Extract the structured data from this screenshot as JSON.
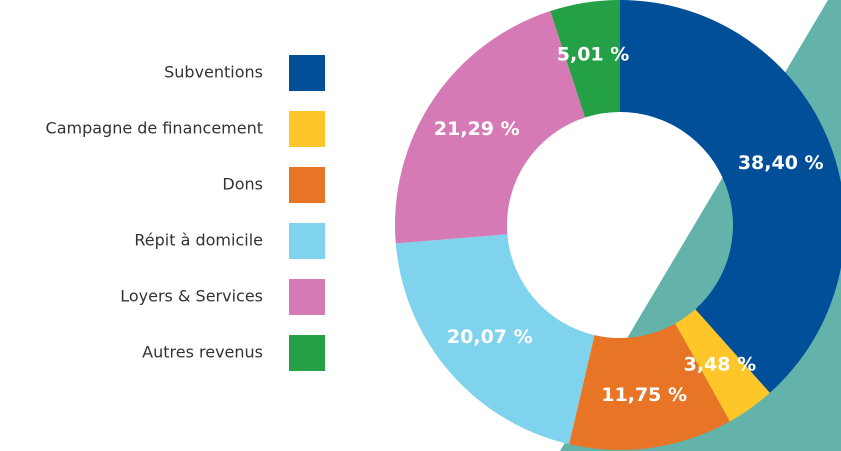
{
  "chart_data": {
    "type": "donut",
    "categories": [
      "Subventions",
      "Campagne de financement",
      "Dons",
      "Répit à domicile",
      "Loyers & Services",
      "Autres revenus"
    ],
    "values": [
      38.4,
      3.48,
      11.75,
      20.07,
      21.29,
      5.01
    ],
    "value_labels": [
      "38,40 %",
      "3,48 %",
      "11,75 %",
      "20,07 %",
      "21,29 %",
      "5,01 %"
    ],
    "colors": [
      "#004f98",
      "#ffc629",
      "#e87425",
      "#80d3ed",
      "#d57ab4",
      "#24a047"
    ],
    "legend": "left"
  }
}
